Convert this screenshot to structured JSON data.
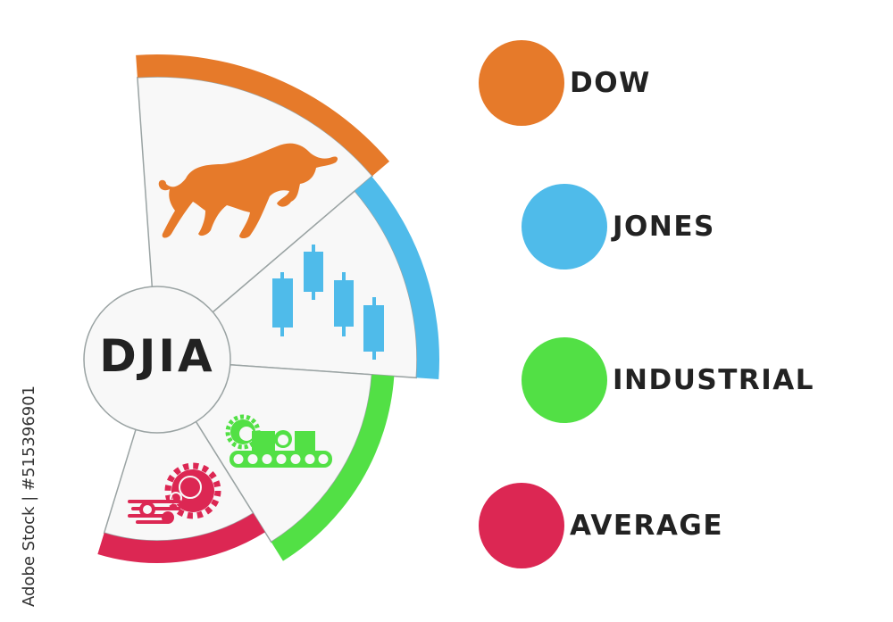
{
  "center": {
    "label": "DJIA"
  },
  "segments": [
    {
      "word": "DOW",
      "color": "#e67a2a",
      "icon": "bull-icon"
    },
    {
      "word": "JONES",
      "color": "#4fbbea",
      "icon": "candlestick-chart-icon"
    },
    {
      "word": "INDUSTRIAL",
      "color": "#52e045",
      "icon": "conveyor-belt-icon"
    },
    {
      "word": "AVERAGE",
      "color": "#dc2753",
      "icon": "gears-icon"
    }
  ],
  "stock_id": "Adobe Stock | #515396901",
  "watermark": "Adobe Stock"
}
